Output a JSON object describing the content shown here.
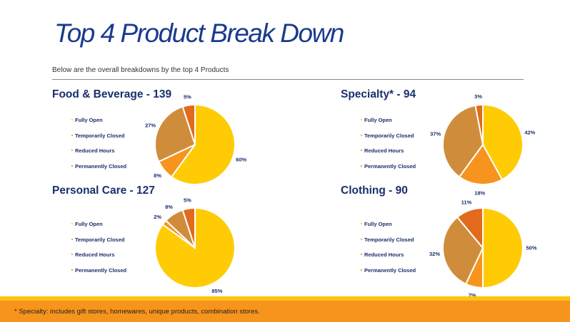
{
  "page": {
    "title": "Top 4 Product Break Down",
    "subtitle": "Below are the overall breakdowns by the top 4 Products",
    "footnote": "* Specialty: includes gift stores, homewares, unique products, combination stores."
  },
  "legend": {
    "labels": [
      "Fully Open",
      "Temporarily Closed",
      "Reduced Hours",
      "Permanently Closed"
    ],
    "colors": [
      "#ffcb05",
      "#f7941d",
      "#d08a3a",
      "#e8741c"
    ]
  },
  "chart_data": [
    {
      "type": "pie",
      "title": "Food & Beverage - 139",
      "categories": [
        "Fully Open",
        "Temporarily Closed",
        "Reduced Hours",
        "Permanently Closed"
      ],
      "values": [
        60,
        8,
        27,
        5
      ],
      "labels": [
        "60%",
        "8%",
        "27%",
        "5%"
      ],
      "colors": [
        "#ffcb05",
        "#f7941d",
        "#cf8d3c",
        "#e26a1c"
      ]
    },
    {
      "type": "pie",
      "title": "Specialty* - 94",
      "categories": [
        "Fully Open",
        "Temporarily Closed",
        "Reduced Hours",
        "Permanently Closed"
      ],
      "values": [
        42,
        18,
        37,
        3
      ],
      "labels": [
        "42%",
        "18%",
        "37%",
        "3%"
      ],
      "colors": [
        "#ffcb05",
        "#f7941d",
        "#cf8d3c",
        "#e26a1c"
      ]
    },
    {
      "type": "pie",
      "title": "Personal Care - 127",
      "categories": [
        "Fully Open",
        "Temporarily Closed",
        "Reduced Hours",
        "Permanently Closed"
      ],
      "values": [
        85,
        2,
        8,
        5
      ],
      "labels": [
        "85%",
        "2%",
        "8%",
        "5%"
      ],
      "colors": [
        "#ffcb05",
        "#f7941d",
        "#cf8d3c",
        "#e26a1c"
      ]
    },
    {
      "type": "pie",
      "title": "Clothing - 90",
      "categories": [
        "Fully Open",
        "Temporarily Closed",
        "Reduced Hours",
        "Permanently Closed"
      ],
      "values": [
        50,
        7,
        32,
        11
      ],
      "labels": [
        "50%",
        "7%",
        "32%",
        "11%"
      ],
      "colors": [
        "#ffcb05",
        "#f7941d",
        "#cf8d3c",
        "#e26a1c"
      ]
    }
  ]
}
